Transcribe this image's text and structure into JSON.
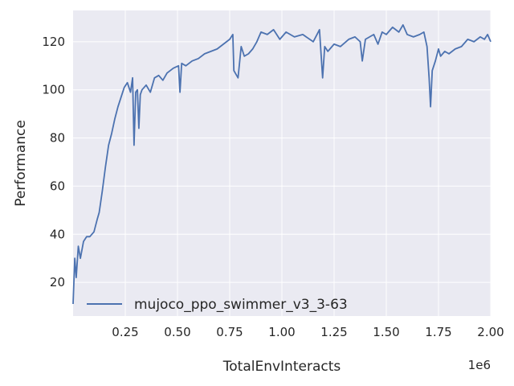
{
  "chart_data": {
    "type": "line",
    "xlabel": "TotalEnvInteracts",
    "ylabel": "Performance",
    "x_offset_label": "1e6",
    "xlim": [
      0,
      2000000
    ],
    "ylim": [
      6,
      133
    ],
    "x_ticks": [
      250000,
      500000,
      750000,
      1000000,
      1250000,
      1500000,
      1750000,
      2000000
    ],
    "x_tick_labels": [
      "0.25",
      "0.50",
      "0.75",
      "1.00",
      "1.25",
      "1.50",
      "1.75",
      "2.00"
    ],
    "y_ticks": [
      20,
      40,
      60,
      80,
      100,
      120
    ],
    "y_tick_labels": [
      "20",
      "40",
      "60",
      "80",
      "100",
      "120"
    ],
    "grid": true,
    "background_color": "#eaeaf2",
    "legend_position": "lower-left",
    "series": [
      {
        "name": "mujoco_ppo_swimmer_v3_3-63",
        "color": "#4c72b0",
        "x": [
          0,
          8000,
          15000,
          25000,
          35000,
          50000,
          65000,
          80000,
          100000,
          115000,
          125000,
          140000,
          155000,
          170000,
          185000,
          200000,
          215000,
          230000,
          245000,
          260000,
          275000,
          285000,
          292000,
          300000,
          308000,
          315000,
          322000,
          330000,
          350000,
          370000,
          390000,
          410000,
          430000,
          450000,
          480000,
          505000,
          512000,
          520000,
          540000,
          570000,
          600000,
          630000,
          660000,
          690000,
          720000,
          750000,
          765000,
          770000,
          790000,
          805000,
          820000,
          840000,
          860000,
          880000,
          900000,
          930000,
          960000,
          990000,
          1020000,
          1060000,
          1100000,
          1150000,
          1180000,
          1195000,
          1205000,
          1220000,
          1250000,
          1280000,
          1320000,
          1350000,
          1375000,
          1385000,
          1400000,
          1420000,
          1440000,
          1460000,
          1480000,
          1500000,
          1530000,
          1560000,
          1580000,
          1600000,
          1630000,
          1660000,
          1680000,
          1695000,
          1705000,
          1712000,
          1720000,
          1735000,
          1750000,
          1760000,
          1780000,
          1800000,
          1830000,
          1860000,
          1890000,
          1920000,
          1950000,
          1970000,
          1985000,
          2000000
        ],
        "y": [
          11,
          30,
          22,
          35,
          30,
          37,
          39,
          39,
          41,
          46,
          49,
          58,
          68,
          77,
          82,
          88,
          93,
          97,
          101,
          103,
          99,
          105,
          77,
          99,
          100,
          84,
          98,
          100,
          102,
          99,
          105,
          106,
          104,
          107,
          109,
          110,
          99,
          111,
          110,
          112,
          113,
          115,
          116,
          117,
          119,
          121,
          123,
          108,
          105,
          118,
          114,
          115,
          117,
          120,
          124,
          123,
          125,
          121,
          124,
          122,
          123,
          120,
          125,
          105,
          118,
          116,
          119,
          118,
          121,
          122,
          120,
          112,
          121,
          122,
          123,
          119,
          124,
          123,
          126,
          124,
          127,
          123,
          122,
          123,
          124,
          118,
          105,
          93,
          108,
          112,
          117,
          114,
          116,
          115,
          117,
          118,
          121,
          120,
          122,
          121,
          123,
          120
        ]
      }
    ]
  }
}
